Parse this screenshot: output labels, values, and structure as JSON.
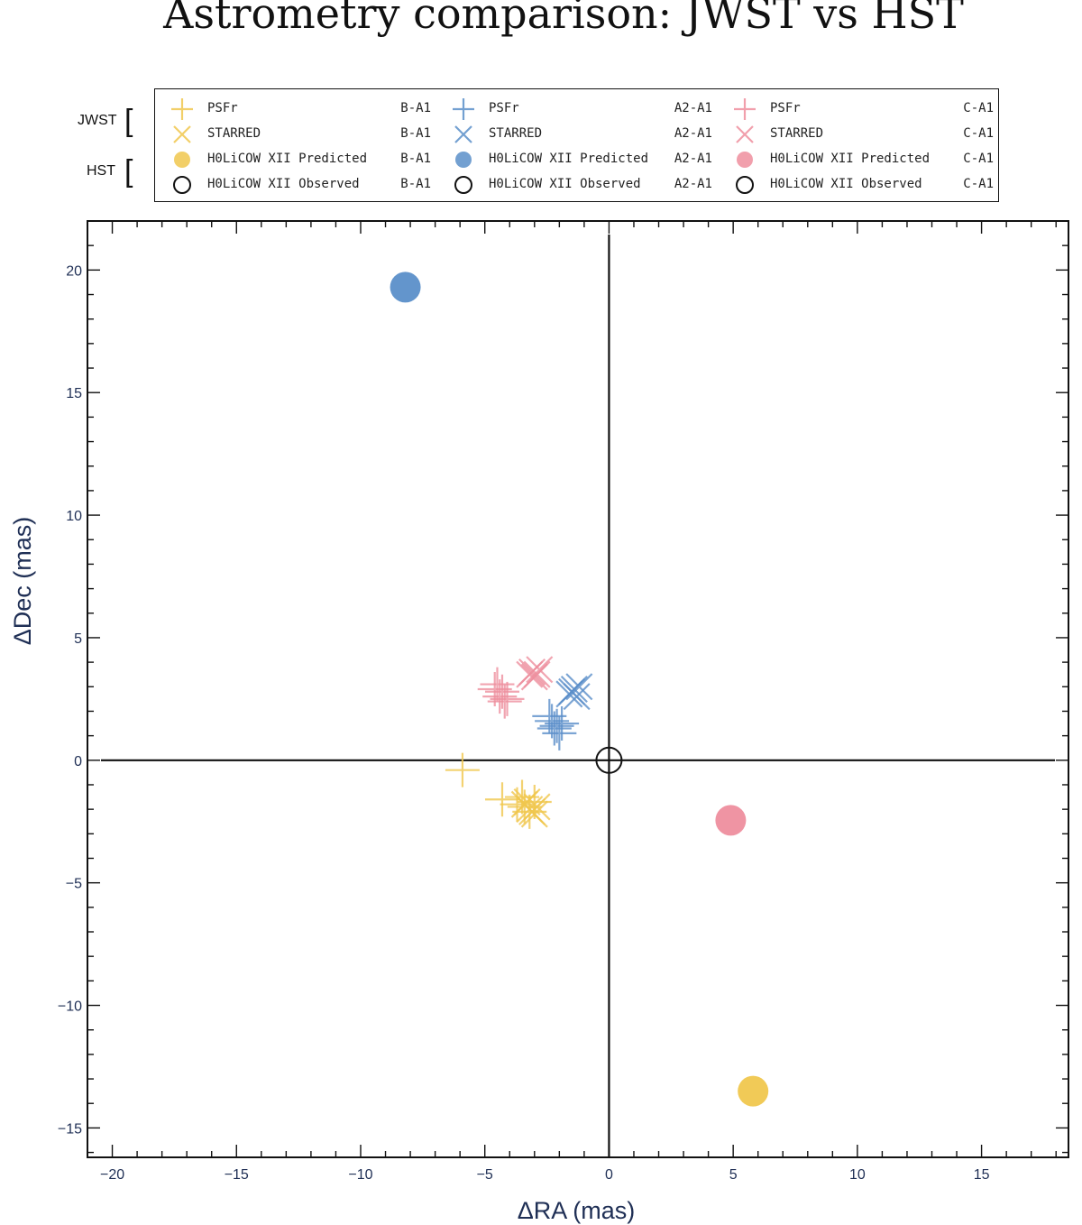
{
  "chart_data": {
    "type": "scatter",
    "title": "Astrometry comparison: JWST vs HST",
    "xlabel": "ΔRA (mas)",
    "ylabel": "ΔDec (mas)",
    "xlim": [
      -21,
      18.5
    ],
    "ylim": [
      -16.2,
      22
    ],
    "xticks": [
      -20,
      -15,
      -10,
      -5,
      0,
      5,
      10,
      15
    ],
    "yticks": [
      -15,
      -10,
      -5,
      0,
      5,
      10,
      15,
      20
    ],
    "xtick_labels": [
      "−20",
      "−15",
      "−10",
      "−5",
      "0",
      "5",
      "10",
      "15"
    ],
    "ytick_labels": [
      "−15",
      "−10",
      "−5",
      "0",
      "5",
      "10",
      "15",
      "20"
    ],
    "colors": {
      "B-A1": "#f0c74e",
      "A2-A1": "#5b8fc9",
      "C-A1": "#ee8e9e"
    },
    "legend_groups": [
      {
        "name": "JWST",
        "rows": [
          "PSFr",
          "STARRED"
        ]
      },
      {
        "name": "HST",
        "rows": [
          "H0LiCOW XII Predicted",
          "H0LiCOW XII Observed"
        ]
      }
    ],
    "legend_entries": [
      {
        "label": "PSFr",
        "pair": "B-A1",
        "marker": "plus"
      },
      {
        "label": "STARRED",
        "pair": "B-A1",
        "marker": "x"
      },
      {
        "label": "H0LiCOW XII Predicted",
        "pair": "B-A1",
        "marker": "filled-circle"
      },
      {
        "label": "H0LiCOW XII Observed",
        "pair": "B-A1",
        "marker": "open-circle"
      },
      {
        "label": "PSFr",
        "pair": "A2-A1",
        "marker": "plus"
      },
      {
        "label": "STARRED",
        "pair": "A2-A1",
        "marker": "x"
      },
      {
        "label": "H0LiCOW XII Predicted",
        "pair": "A2-A1",
        "marker": "filled-circle"
      },
      {
        "label": "H0LiCOW XII Observed",
        "pair": "A2-A1",
        "marker": "open-circle"
      },
      {
        "label": "PSFr",
        "pair": "C-A1",
        "marker": "plus"
      },
      {
        "label": "STARRED",
        "pair": "C-A1",
        "marker": "x"
      },
      {
        "label": "H0LiCOW XII Predicted",
        "pair": "C-A1",
        "marker": "filled-circle"
      },
      {
        "label": "H0LiCOW XII Observed",
        "pair": "C-A1",
        "marker": "open-circle"
      }
    ],
    "series": [
      {
        "name": "PSFr B-A1",
        "pair": "B-A1",
        "marker": "plus",
        "points": [
          [
            -5.9,
            -0.4
          ],
          [
            -4.3,
            -1.6
          ],
          [
            -3.7,
            -1.8
          ],
          [
            -3.5,
            -1.5
          ],
          [
            -3.2,
            -2.1
          ],
          [
            -3.4,
            -1.9
          ],
          [
            -3.0,
            -1.7
          ]
        ]
      },
      {
        "name": "STARRED B-A1",
        "pair": "B-A1",
        "marker": "x",
        "points": [
          [
            -3.4,
            -1.8
          ],
          [
            -3.2,
            -2.0
          ],
          [
            -3.0,
            -2.2
          ],
          [
            -3.3,
            -1.7
          ],
          [
            -2.9,
            -1.9
          ],
          [
            -3.1,
            -2.1
          ]
        ]
      },
      {
        "name": "PSFr A2-A1",
        "pair": "A2-A1",
        "marker": "plus",
        "points": [
          [
            -2.4,
            1.8
          ],
          [
            -2.1,
            1.4
          ],
          [
            -2.0,
            1.1
          ],
          [
            -2.3,
            1.6
          ],
          [
            -1.9,
            1.5
          ],
          [
            -2.2,
            1.3
          ]
        ]
      },
      {
        "name": "STARRED A2-A1",
        "pair": "A2-A1",
        "marker": "x",
        "points": [
          [
            -1.5,
            2.8
          ],
          [
            -1.4,
            2.9
          ],
          [
            -1.3,
            2.6
          ],
          [
            -1.6,
            2.7
          ],
          [
            -1.2,
            3.0
          ]
        ]
      },
      {
        "name": "PSFr C-A1",
        "pair": "C-A1",
        "marker": "plus",
        "points": [
          [
            -4.6,
            2.9
          ],
          [
            -4.4,
            2.6
          ],
          [
            -4.2,
            2.4
          ],
          [
            -4.5,
            3.1
          ],
          [
            -4.3,
            2.8
          ],
          [
            -4.1,
            2.5
          ]
        ]
      },
      {
        "name": "STARRED C-A1",
        "pair": "C-A1",
        "marker": "x",
        "points": [
          [
            -3.1,
            3.6
          ],
          [
            -2.9,
            3.5
          ],
          [
            -3.0,
            3.4
          ],
          [
            -2.8,
            3.7
          ],
          [
            -3.2,
            3.5
          ]
        ]
      },
      {
        "name": "H0LiCOW XII Predicted B-A1",
        "pair": "B-A1",
        "marker": "filled-circle",
        "points": [
          [
            5.8,
            -13.5
          ]
        ]
      },
      {
        "name": "H0LiCOW XII Predicted A2-A1",
        "pair": "A2-A1",
        "marker": "filled-circle",
        "points": [
          [
            -8.2,
            19.3
          ]
        ]
      },
      {
        "name": "H0LiCOW XII Predicted C-A1",
        "pair": "C-A1",
        "marker": "filled-circle",
        "points": [
          [
            4.9,
            -2.45
          ]
        ]
      },
      {
        "name": "H0LiCOW XII Observed",
        "pair": "B-A1",
        "marker": "open-circle",
        "points": [
          [
            0,
            0
          ]
        ]
      }
    ]
  }
}
